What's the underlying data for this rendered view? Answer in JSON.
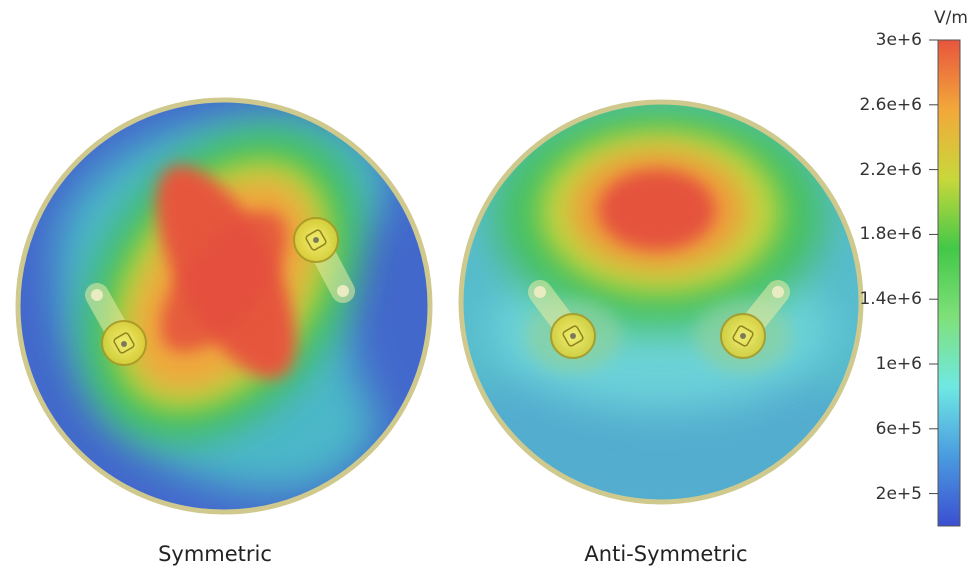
{
  "panels": [
    {
      "caption": "Symmetric"
    },
    {
      "caption": "Anti-Symmetric"
    }
  ],
  "colorbar": {
    "unit": "V/m",
    "min": 0,
    "max": 3000000,
    "ticks": [
      {
        "label": "3e+6",
        "value": 3000000
      },
      {
        "label": "2.6e+6",
        "value": 2600000
      },
      {
        "label": "2.2e+6",
        "value": 2200000
      },
      {
        "label": "1.8e+6",
        "value": 1800000
      },
      {
        "label": "1.4e+6",
        "value": 1400000
      },
      {
        "label": "1e+6",
        "value": 1000000
      },
      {
        "label": "6e+5",
        "value": 600000
      },
      {
        "label": "2e+5",
        "value": 200000
      }
    ],
    "colors": [
      "#3b4fd0",
      "#4a9be0",
      "#6fe8e2",
      "#7fe07a",
      "#43c848",
      "#c8d83a",
      "#f2a83a",
      "#e8553d"
    ]
  }
}
